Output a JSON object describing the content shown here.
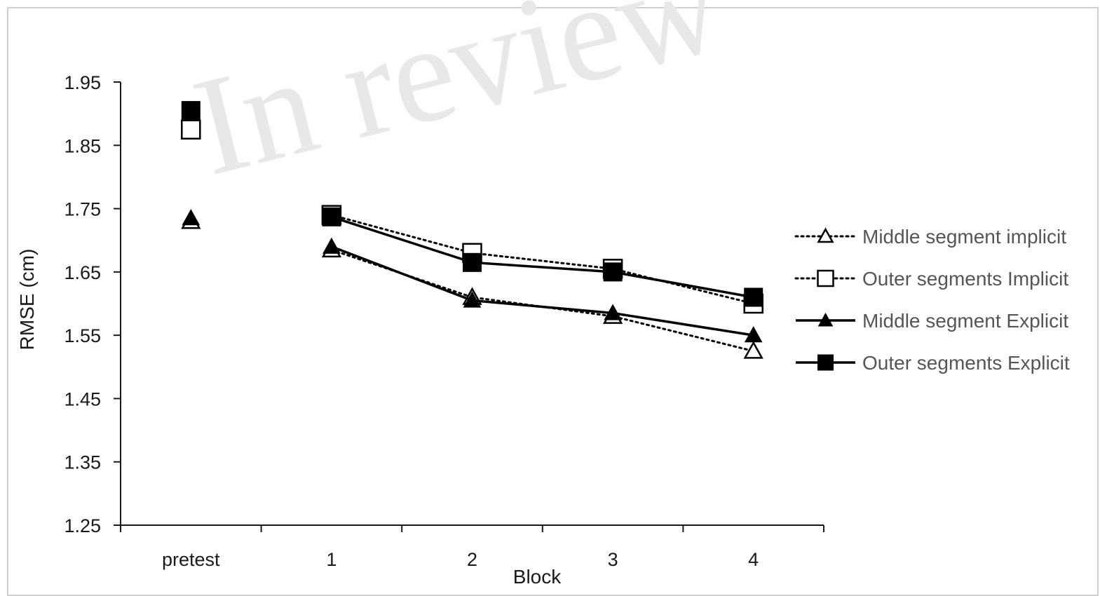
{
  "watermark": "In review",
  "chart_data": {
    "type": "line",
    "categories": [
      "pretest",
      "1",
      "2",
      "3",
      "4"
    ],
    "xlabel": "Block",
    "ylabel": "RMSE (cm)",
    "ylim": [
      1.25,
      1.95
    ],
    "yticks": [
      "1.25",
      "1.35",
      "1.45",
      "1.55",
      "1.65",
      "1.75",
      "1.85",
      "1.95"
    ],
    "grid": false,
    "legend_position": "right",
    "pretest_connected": false,
    "series": [
      {
        "name": "Middle segment implicit",
        "marker": "triangle-open",
        "line": "dotted",
        "values": [
          1.73,
          1.685,
          1.61,
          1.58,
          1.525
        ]
      },
      {
        "name": "Outer segments Implicit",
        "marker": "square-open",
        "line": "dotted",
        "values": [
          1.875,
          1.74,
          1.68,
          1.655,
          1.6
        ]
      },
      {
        "name": "Middle segment Explicit",
        "marker": "triangle-filled",
        "line": "solid",
        "values": [
          1.735,
          1.69,
          1.605,
          1.585,
          1.55
        ]
      },
      {
        "name": "Outer segments Explicit",
        "marker": "square-filled",
        "line": "solid",
        "values": [
          1.905,
          1.737,
          1.665,
          1.65,
          1.61
        ]
      }
    ],
    "colors": {
      "axis": "#1a1a1a",
      "marker": "#000000",
      "line": "#000000"
    }
  }
}
